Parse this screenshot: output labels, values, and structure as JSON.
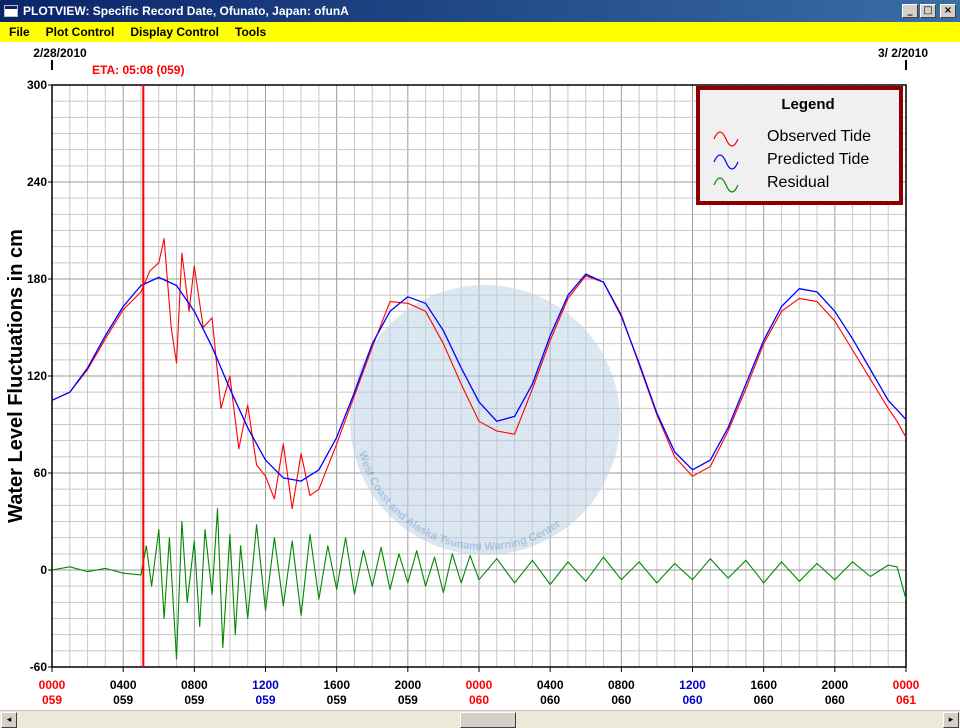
{
  "window": {
    "title": "PLOTVIEW: Specific Record Date, Ofunato, Japan: ofunA",
    "minimize_label": "_",
    "maximize_label": "□",
    "close_label": "×"
  },
  "menu": [
    "File",
    "Plot Control",
    "Display Control",
    "Tools"
  ],
  "dates": {
    "start": "2/28/2010",
    "end": "3/ 2/2010"
  },
  "eta": {
    "label": "ETA: 05:08 (059)",
    "hour": 5.133
  },
  "scrollbar": {
    "left_arrow": "◂",
    "right_arrow": "▸"
  },
  "colors": {
    "observed": "#ff0000",
    "predicted": "#0000ff",
    "residual": "#008800",
    "eta": "#ff0000",
    "legend_border": "#8b0000",
    "menu_bg": "#ffff00",
    "watermark": "#b8cfe4"
  },
  "watermark": {
    "text": "West Coast and Alaska Tsunami Warning Center"
  },
  "chart_data": {
    "type": "line",
    "ylabel": "Water Level Fluctuations in cm",
    "ylim": [
      -60,
      300
    ],
    "yticks": [
      -60,
      0,
      60,
      120,
      180,
      240,
      300
    ],
    "xlim_hours": [
      0,
      48
    ],
    "x_ticks": [
      {
        "time": "0000",
        "day": "059",
        "color": "#ff0000",
        "day_color": "#ff0000"
      },
      {
        "time": "0400",
        "day": "059",
        "color": "#000000",
        "day_color": "#000000"
      },
      {
        "time": "0800",
        "day": "059",
        "color": "#000000",
        "day_color": "#000000"
      },
      {
        "time": "1200",
        "day": "059",
        "color": "#0000cc",
        "day_color": "#0000cc"
      },
      {
        "time": "1600",
        "day": "059",
        "color": "#000000",
        "day_color": "#000000"
      },
      {
        "time": "2000",
        "day": "059",
        "color": "#000000",
        "day_color": "#000000"
      },
      {
        "time": "0000",
        "day": "060",
        "color": "#ff0000",
        "day_color": "#ff0000"
      },
      {
        "time": "0400",
        "day": "060",
        "color": "#000000",
        "day_color": "#000000"
      },
      {
        "time": "0800",
        "day": "060",
        "color": "#000000",
        "day_color": "#000000"
      },
      {
        "time": "1200",
        "day": "060",
        "color": "#0000cc",
        "day_color": "#0000cc"
      },
      {
        "time": "1600",
        "day": "060",
        "color": "#000000",
        "day_color": "#000000"
      },
      {
        "time": "2000",
        "day": "060",
        "color": "#000000",
        "day_color": "#000000"
      },
      {
        "time": "0000",
        "day": "061",
        "color": "#ff0000",
        "day_color": "#ff0000"
      }
    ],
    "legend": {
      "title": "Legend",
      "placement": "top-right",
      "items": [
        "Observed Tide",
        "Predicted Tide",
        "Residual"
      ]
    },
    "grid": true,
    "series": [
      {
        "name": "Predicted Tide",
        "hours": [
          0,
          1,
          2,
          3,
          4,
          5,
          6,
          7,
          8,
          9,
          10,
          11,
          12,
          13,
          14,
          15,
          16,
          17,
          18,
          19,
          20,
          21,
          22,
          23,
          24,
          25,
          26,
          27,
          28,
          29,
          30,
          31,
          32,
          33,
          34,
          35,
          36,
          37,
          38,
          39,
          40,
          41,
          42,
          43,
          44,
          45,
          46,
          47,
          48
        ],
        "values": [
          105,
          110,
          125,
          145,
          163,
          176,
          181,
          176,
          160,
          138,
          112,
          88,
          68,
          57,
          55,
          62,
          82,
          110,
          140,
          160,
          169,
          165,
          148,
          125,
          104,
          92,
          95,
          115,
          145,
          170,
          183,
          178,
          157,
          128,
          97,
          73,
          62,
          68,
          88,
          115,
          142,
          163,
          174,
          172,
          160,
          143,
          124,
          105,
          93
        ]
      },
      {
        "name": "Observed Tide",
        "hours": [
          0,
          1,
          2,
          3,
          4,
          5,
          5.5,
          6,
          6.3,
          6.7,
          7,
          7.3,
          7.7,
          8,
          8.5,
          9,
          9.5,
          10,
          10.5,
          11,
          11.5,
          12,
          12.5,
          13,
          13.5,
          14,
          14.5,
          15,
          16,
          17,
          18,
          19,
          20,
          21,
          22,
          23,
          24,
          25,
          26,
          27,
          28,
          29,
          30,
          31,
          32,
          33,
          34,
          35,
          36,
          37,
          38,
          39,
          40,
          41,
          42,
          43,
          44,
          45,
          46,
          47,
          47.5,
          48
        ],
        "values": [
          105,
          110,
          124,
          143,
          161,
          172,
          185,
          190,
          205,
          150,
          128,
          196,
          160,
          188,
          150,
          156,
          100,
          120,
          75,
          102,
          65,
          58,
          44,
          78,
          38,
          72,
          46,
          50,
          78,
          108,
          138,
          166,
          165,
          160,
          140,
          115,
          92,
          86,
          84,
          112,
          142,
          168,
          182,
          178,
          158,
          127,
          96,
          70,
          58,
          64,
          86,
          112,
          140,
          160,
          168,
          166,
          154,
          136,
          118,
          100,
          92,
          82
        ]
      },
      {
        "name": "Residual",
        "hours": [
          0,
          1,
          2,
          3,
          4,
          5,
          5.3,
          5.6,
          6,
          6.3,
          6.6,
          7,
          7.3,
          7.6,
          8,
          8.3,
          8.6,
          9,
          9.3,
          9.6,
          10,
          10.3,
          10.6,
          11,
          11.5,
          12,
          12.5,
          13,
          13.5,
          14,
          14.5,
          15,
          15.5,
          16,
          16.5,
          17,
          17.5,
          18,
          18.5,
          19,
          19.5,
          20,
          20.5,
          21,
          21.5,
          22,
          22.5,
          23,
          23.5,
          24,
          25,
          26,
          27,
          28,
          29,
          30,
          31,
          32,
          33,
          34,
          35,
          36,
          37,
          38,
          39,
          40,
          41,
          42,
          43,
          44,
          45,
          46,
          47,
          47.5,
          48
        ],
        "values": [
          0,
          2,
          -1,
          1,
          -2,
          -3,
          15,
          -10,
          25,
          -30,
          20,
          -55,
          30,
          -20,
          18,
          -35,
          25,
          -15,
          38,
          -48,
          22,
          -40,
          15,
          -30,
          28,
          -25,
          20,
          -22,
          18,
          -28,
          22,
          -18,
          15,
          -12,
          20,
          -15,
          12,
          -10,
          14,
          -12,
          10,
          -8,
          12,
          -10,
          8,
          -14,
          10,
          -8,
          9,
          -6,
          7,
          -8,
          6,
          -9,
          5,
          -7,
          8,
          -6,
          5,
          -8,
          4,
          -6,
          7,
          -5,
          6,
          -8,
          5,
          -7,
          4,
          -6,
          5,
          -4,
          3,
          2,
          -18
        ]
      }
    ]
  }
}
